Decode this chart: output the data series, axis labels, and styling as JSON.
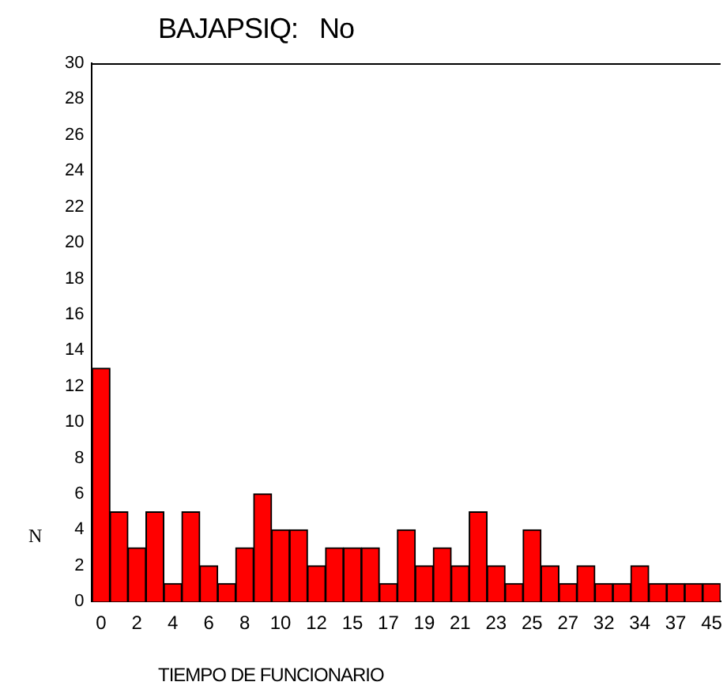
{
  "chart_data": {
    "type": "bar",
    "title": "BAJAPSIQ:   No",
    "xlabel": "TIEMPO DE FUNCIONARIO",
    "ylabel": "N",
    "categories": [
      "0",
      null,
      "2",
      null,
      "4",
      null,
      "6",
      null,
      "8",
      null,
      "10",
      null,
      "12",
      null,
      "15",
      null,
      "17",
      null,
      "19",
      null,
      "21",
      null,
      "23",
      null,
      "25",
      null,
      "27",
      null,
      "32",
      null,
      "34",
      null,
      "37",
      null,
      "45"
    ],
    "values": [
      13,
      5,
      3,
      5,
      1,
      5,
      2,
      1,
      3,
      6,
      4,
      4,
      2,
      3,
      3,
      3,
      1,
      4,
      2,
      3,
      2,
      5,
      2,
      1,
      4,
      2,
      1,
      2,
      1,
      1,
      2,
      1,
      1,
      1,
      1
    ],
    "color": "#ff0000",
    "ylim": [
      0,
      30
    ],
    "yticks": [
      0,
      2,
      4,
      6,
      8,
      10,
      12,
      14,
      16,
      18,
      20,
      22,
      24,
      26,
      28,
      30
    ],
    "grid": false,
    "legend": false
  }
}
